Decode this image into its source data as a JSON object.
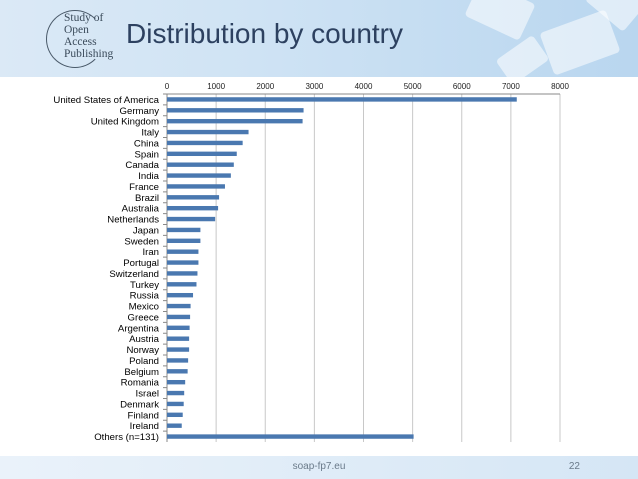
{
  "slide": {
    "title": "Distribution by country",
    "logo_text": "Study of\nOpen\nAccess\nPublishing",
    "footer": "soap-fp7.eu",
    "page_number": "22"
  },
  "colors": {
    "bar": "#4a78b0",
    "grid": "#c8c8c8",
    "title": "#2d4160"
  },
  "chart_data": {
    "type": "bar",
    "orientation": "horizontal",
    "title": "",
    "xlabel": "",
    "ylabel": "",
    "xlim": [
      0,
      8000
    ],
    "x_ticks": [
      0,
      1000,
      2000,
      3000,
      4000,
      5000,
      6000,
      7000,
      8000
    ],
    "x_tick_position": "top",
    "grid": "vertical",
    "categories": [
      "United States of America",
      "Germany",
      "United Kingdom",
      "Italy",
      "China",
      "Spain",
      "Canada",
      "India",
      "France",
      "Brazil",
      "Australia",
      "Netherlands",
      "Japan",
      "Sweden",
      "Iran",
      "Portugal",
      "Switzerland",
      "Turkey",
      "Russia",
      "Mexico",
      "Greece",
      "Argentina",
      "Austria",
      "Norway",
      "Poland",
      "Belgium",
      "Romania",
      "Israel",
      "Denmark",
      "Finland",
      "Ireland",
      "Others (n=131)"
    ],
    "values": [
      7120,
      2780,
      2760,
      1660,
      1540,
      1420,
      1360,
      1300,
      1180,
      1060,
      1040,
      980,
      680,
      680,
      640,
      640,
      620,
      600,
      530,
      480,
      470,
      460,
      450,
      450,
      430,
      420,
      370,
      350,
      340,
      320,
      300,
      5020
    ]
  }
}
